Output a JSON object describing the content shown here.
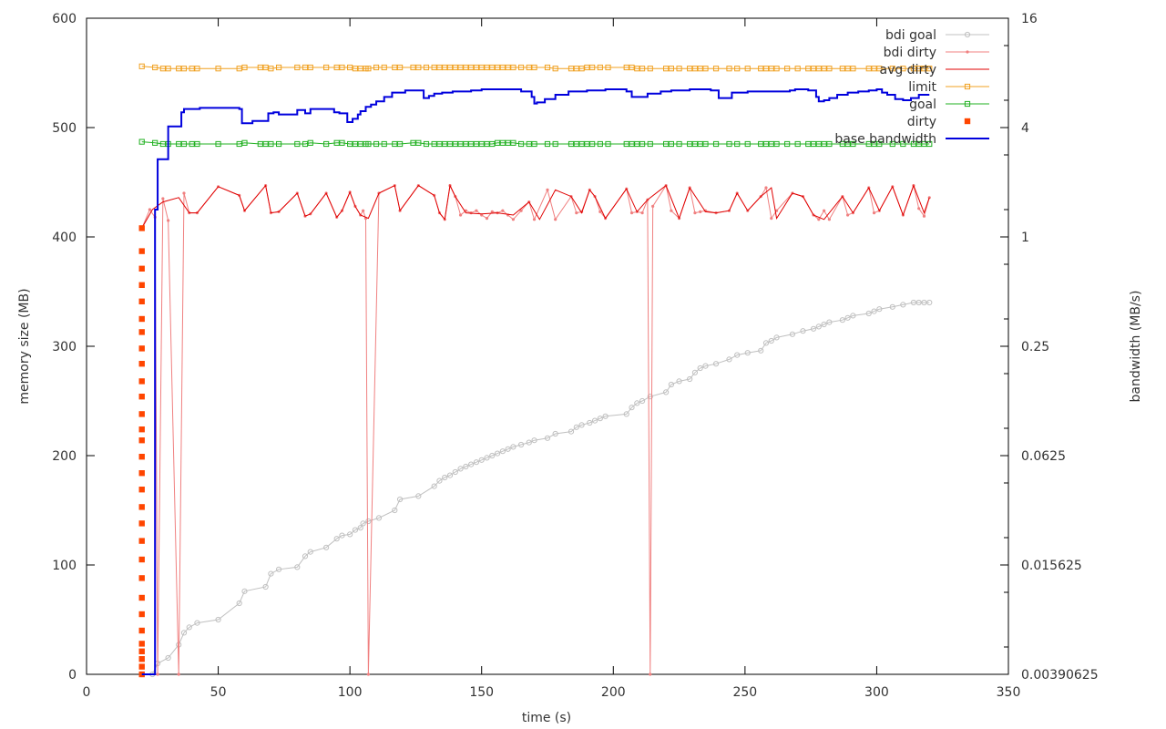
{
  "chart_data": {
    "type": "line",
    "xlabel": "time (s)",
    "ylabel": "memory size (MB)",
    "y2label": "bandwidth (MB/s)",
    "xlim": [
      0,
      350
    ],
    "ylim": [
      0,
      600
    ],
    "y2_scale": "log2",
    "y2lim": [
      0.00390625,
      16
    ],
    "xticks": [
      "0",
      "50",
      "100",
      "150",
      "200",
      "250",
      "300",
      "350"
    ],
    "yticks": [
      "0",
      "100",
      "200",
      "300",
      "400",
      "500",
      "600"
    ],
    "y2ticks": [
      "0.00390625",
      "0.015625",
      "0.0625",
      "0.25",
      "1",
      "4",
      "16"
    ],
    "grid": false,
    "legend_position": "top-right",
    "series": [
      {
        "name": "bdi goal",
        "color": "#c0c0c0",
        "marker": "circle",
        "line": true,
        "axis": "left",
        "x": [
          21,
          25,
          27,
          31,
          35,
          37,
          39,
          42,
          50,
          58,
          60,
          68,
          70,
          73,
          80,
          83,
          85,
          91,
          95,
          97,
          100,
          102,
          104,
          105,
          107,
          111,
          117,
          119,
          126,
          132,
          134,
          136,
          138,
          140,
          142,
          144,
          146,
          148,
          150,
          152,
          154,
          156,
          158,
          160,
          162,
          165,
          168,
          170,
          175,
          178,
          184,
          186,
          188,
          191,
          193,
          195,
          197,
          205,
          207,
          209,
          211,
          214,
          220,
          222,
          225,
          229,
          231,
          233,
          235,
          239,
          244,
          247,
          251,
          256,
          258,
          260,
          262,
          268,
          272,
          276,
          278,
          280,
          282,
          287,
          289,
          291,
          297,
          299,
          301,
          306,
          310,
          314,
          316,
          318,
          320
        ],
        "y": [
          0,
          0,
          10,
          15,
          27,
          38,
          43,
          47,
          50,
          65,
          76,
          80,
          92,
          96,
          98,
          108,
          112,
          116,
          124,
          127,
          128,
          132,
          134,
          138,
          140,
          143,
          150,
          160,
          163,
          172,
          177,
          180,
          182,
          185,
          188,
          190,
          192,
          194,
          196,
          198,
          200,
          202,
          204,
          206,
          208,
          210,
          212,
          214,
          216,
          220,
          222,
          226,
          228,
          230,
          232,
          234,
          236,
          238,
          244,
          248,
          250,
          254,
          258,
          265,
          268,
          270,
          276,
          280,
          282,
          284,
          288,
          292,
          294,
          296,
          303,
          305,
          308,
          311,
          314,
          316,
          318,
          320,
          322,
          324,
          326,
          328,
          330,
          332,
          334,
          336,
          338,
          340,
          340,
          340,
          340
        ]
      },
      {
        "name": "bdi dirty",
        "color": "#f08080",
        "marker": "dot",
        "line": true,
        "axis": "left",
        "x": [
          21,
          24,
          26,
          27,
          29,
          31,
          35,
          37,
          39,
          42,
          50,
          58,
          60,
          68,
          70,
          73,
          80,
          83,
          85,
          91,
          95,
          97,
          100,
          102,
          104,
          105,
          106,
          107,
          111,
          117,
          119,
          126,
          132,
          134,
          136,
          138,
          140,
          142,
          144,
          146,
          148,
          150,
          152,
          154,
          156,
          158,
          160,
          162,
          165,
          168,
          170,
          175,
          178,
          184,
          186,
          188,
          191,
          193,
          195,
          197,
          205,
          207,
          209,
          211,
          213,
          214,
          215,
          220,
          222,
          225,
          229,
          231,
          233,
          235,
          239,
          244,
          247,
          251,
          256,
          258,
          260,
          262,
          268,
          272,
          276,
          278,
          280,
          282,
          287,
          289,
          291,
          297,
          299,
          301,
          306,
          310,
          314,
          316,
          318,
          320
        ],
        "y": [
          408,
          425,
          418,
          0,
          435,
          415,
          0,
          440,
          422,
          422,
          446,
          438,
          424,
          447,
          422,
          423,
          440,
          419,
          421,
          440,
          418,
          424,
          441,
          428,
          420,
          424,
          417,
          0,
          440,
          447,
          424,
          447,
          438,
          422,
          416,
          447,
          437,
          420,
          424,
          422,
          424,
          420,
          417,
          423,
          422,
          424,
          420,
          416,
          424,
          432,
          416,
          443,
          416,
          437,
          422,
          423,
          443,
          437,
          423,
          417,
          444,
          422,
          423,
          422,
          434,
          0,
          428,
          447,
          424,
          417,
          445,
          422,
          423,
          424,
          422,
          424,
          440,
          424,
          437,
          445,
          417,
          424,
          440,
          437,
          420,
          416,
          424,
          416,
          437,
          420,
          422,
          445,
          422,
          424,
          446,
          420,
          447,
          426,
          419,
          436
        ]
      },
      {
        "name": "avg dirty",
        "color": "#e00000",
        "marker": "none",
        "line": true,
        "axis": "left",
        "x": [
          21,
          25,
          29,
          35,
          39,
          42,
          50,
          58,
          60,
          68,
          70,
          73,
          80,
          83,
          85,
          91,
          95,
          97,
          100,
          102,
          104,
          107,
          111,
          117,
          119,
          126,
          132,
          134,
          136,
          138,
          140,
          144,
          150,
          156,
          162,
          168,
          172,
          178,
          184,
          188,
          191,
          193,
          197,
          205,
          209,
          213,
          220,
          225,
          229,
          235,
          239,
          244,
          247,
          251,
          256,
          260,
          262,
          268,
          272,
          276,
          280,
          287,
          291,
          297,
          301,
          306,
          310,
          314,
          318,
          320
        ],
        "y": [
          408,
          425,
          432,
          436,
          422,
          422,
          446,
          438,
          424,
          447,
          422,
          423,
          440,
          419,
          421,
          440,
          418,
          424,
          441,
          428,
          420,
          417,
          440,
          447,
          424,
          447,
          438,
          422,
          416,
          447,
          437,
          422,
          421,
          422,
          420,
          432,
          416,
          443,
          437,
          422,
          443,
          437,
          417,
          444,
          423,
          434,
          447,
          417,
          445,
          423,
          422,
          424,
          440,
          424,
          437,
          445,
          417,
          440,
          437,
          420,
          416,
          437,
          422,
          445,
          424,
          446,
          420,
          447,
          422,
          436
        ]
      },
      {
        "name": "limit",
        "color": "#f0a020",
        "marker": "square-open",
        "line": true,
        "axis": "left",
        "x": [
          21,
          26,
          29,
          31,
          35,
          37,
          40,
          42,
          50,
          58,
          60,
          66,
          68,
          70,
          73,
          80,
          83,
          85,
          91,
          95,
          97,
          100,
          102,
          104,
          106,
          107,
          110,
          113,
          117,
          119,
          124,
          126,
          129,
          132,
          134,
          136,
          138,
          140,
          142,
          144,
          146,
          148,
          150,
          152,
          154,
          156,
          158,
          160,
          162,
          165,
          168,
          170,
          175,
          178,
          184,
          186,
          188,
          190,
          192,
          195,
          198,
          205,
          207,
          209,
          211,
          214,
          220,
          222,
          225,
          229,
          231,
          233,
          235,
          239,
          244,
          247,
          251,
          256,
          258,
          260,
          262,
          266,
          270,
          274,
          276,
          278,
          280,
          282,
          287,
          289,
          291,
          297,
          299,
          301,
          306,
          310,
          314,
          316,
          318,
          320
        ],
        "y": [
          556,
          555,
          554,
          554,
          554,
          554,
          554,
          554,
          554,
          554,
          555,
          555,
          555,
          554,
          555,
          555,
          555,
          555,
          555,
          555,
          555,
          555,
          554,
          554,
          554,
          554,
          555,
          555,
          555,
          555,
          555,
          555,
          555,
          555,
          555,
          555,
          555,
          555,
          555,
          555,
          555,
          555,
          555,
          555,
          555,
          555,
          555,
          555,
          555,
          555,
          555,
          555,
          555,
          554,
          554,
          554,
          554,
          555,
          555,
          555,
          555,
          555,
          555,
          554,
          554,
          554,
          554,
          554,
          554,
          554,
          554,
          554,
          554,
          554,
          554,
          554,
          554,
          554,
          554,
          554,
          554,
          554,
          554,
          554,
          554,
          554,
          554,
          554,
          554,
          554,
          554,
          554,
          554,
          554,
          554,
          554,
          554,
          554,
          554,
          554
        ]
      },
      {
        "name": "goal",
        "color": "#20b020",
        "marker": "square-open",
        "line": true,
        "axis": "left",
        "x": [
          21,
          26,
          29,
          31,
          35,
          37,
          40,
          42,
          50,
          58,
          60,
          66,
          68,
          70,
          73,
          80,
          83,
          85,
          91,
          95,
          97,
          100,
          102,
          104,
          106,
          107,
          110,
          113,
          117,
          119,
          124,
          126,
          129,
          132,
          134,
          136,
          138,
          140,
          142,
          144,
          146,
          148,
          150,
          152,
          154,
          156,
          158,
          160,
          162,
          165,
          168,
          170,
          175,
          178,
          184,
          186,
          188,
          190,
          192,
          195,
          198,
          205,
          207,
          209,
          211,
          214,
          220,
          222,
          225,
          229,
          231,
          233,
          235,
          239,
          244,
          247,
          251,
          256,
          258,
          260,
          262,
          266,
          270,
          274,
          276,
          278,
          280,
          282,
          287,
          289,
          291,
          297,
          299,
          301,
          306,
          310,
          314,
          316,
          318,
          320
        ],
        "y": [
          487,
          486,
          485,
          485,
          485,
          485,
          485,
          485,
          485,
          485,
          486,
          485,
          485,
          485,
          485,
          485,
          485,
          486,
          485,
          486,
          486,
          485,
          485,
          485,
          485,
          485,
          485,
          485,
          485,
          485,
          486,
          486,
          485,
          485,
          485,
          485,
          485,
          485,
          485,
          485,
          485,
          485,
          485,
          485,
          485,
          486,
          486,
          486,
          486,
          485,
          485,
          485,
          485,
          485,
          485,
          485,
          485,
          485,
          485,
          485,
          485,
          485,
          485,
          485,
          485,
          485,
          485,
          485,
          485,
          485,
          485,
          485,
          485,
          485,
          485,
          485,
          485,
          485,
          485,
          485,
          485,
          485,
          485,
          485,
          485,
          485,
          485,
          485,
          485,
          485,
          485,
          485,
          485,
          485,
          485,
          485,
          485,
          485,
          485,
          485
        ]
      },
      {
        "name": "dirty",
        "color": "#ff4500",
        "marker": "square-filled",
        "line": false,
        "axis": "left",
        "x": [
          21,
          21,
          21,
          21,
          21,
          21,
          21,
          21,
          21,
          21,
          21,
          21,
          21,
          21,
          21,
          21,
          21,
          21,
          21,
          21,
          21,
          21,
          21,
          21,
          21,
          21,
          21,
          21,
          21,
          21
        ],
        "y": [
          0,
          7,
          14,
          21,
          28,
          40,
          55,
          70,
          88,
          105,
          122,
          138,
          153,
          169,
          184,
          199,
          214,
          224,
          238,
          254,
          268,
          284,
          298,
          313,
          325,
          341,
          356,
          371,
          387,
          408
        ]
      },
      {
        "name": "base bandwidth",
        "color": "#0000dd",
        "marker": "none",
        "line": true,
        "axis": "left",
        "step": true,
        "x": [
          21,
          26,
          27,
          31,
          36,
          37,
          39,
          43,
          47,
          50,
          58,
          59,
          63,
          69,
          71,
          73,
          76,
          80,
          83,
          85,
          89,
          94,
          96,
          99,
          101,
          103,
          104,
          106,
          108,
          110,
          113,
          116,
          121,
          126,
          128,
          130,
          132,
          135,
          139,
          146,
          150,
          155,
          159,
          165,
          169,
          170,
          171,
          174,
          178,
          183,
          190,
          197,
          205,
          207,
          213,
          218,
          222,
          229,
          237,
          240,
          245,
          251,
          255,
          261,
          266,
          267,
          269,
          274,
          277,
          278,
          280,
          282,
          285,
          289,
          293,
          297,
          300,
          302,
          304,
          307,
          310,
          313,
          316,
          320
        ],
        "y": [
          0,
          425,
          471,
          501,
          514,
          517,
          517,
          518,
          518,
          518,
          517,
          504,
          506,
          513,
          514,
          512,
          512,
          516,
          513,
          517,
          517,
          514,
          513,
          505,
          508,
          512,
          515,
          519,
          521,
          524,
          528,
          532,
          534,
          534,
          527,
          529,
          531,
          532,
          533,
          534,
          535,
          535,
          535,
          533,
          528,
          522,
          523,
          526,
          530,
          533,
          534,
          535,
          533,
          528,
          531,
          533,
          534,
          535,
          534,
          527,
          532,
          533,
          533,
          533,
          533,
          534,
          535,
          534,
          528,
          524,
          525,
          527,
          530,
          532,
          533,
          534,
          535,
          532,
          530,
          526,
          525,
          527,
          530,
          530
        ]
      }
    ]
  }
}
